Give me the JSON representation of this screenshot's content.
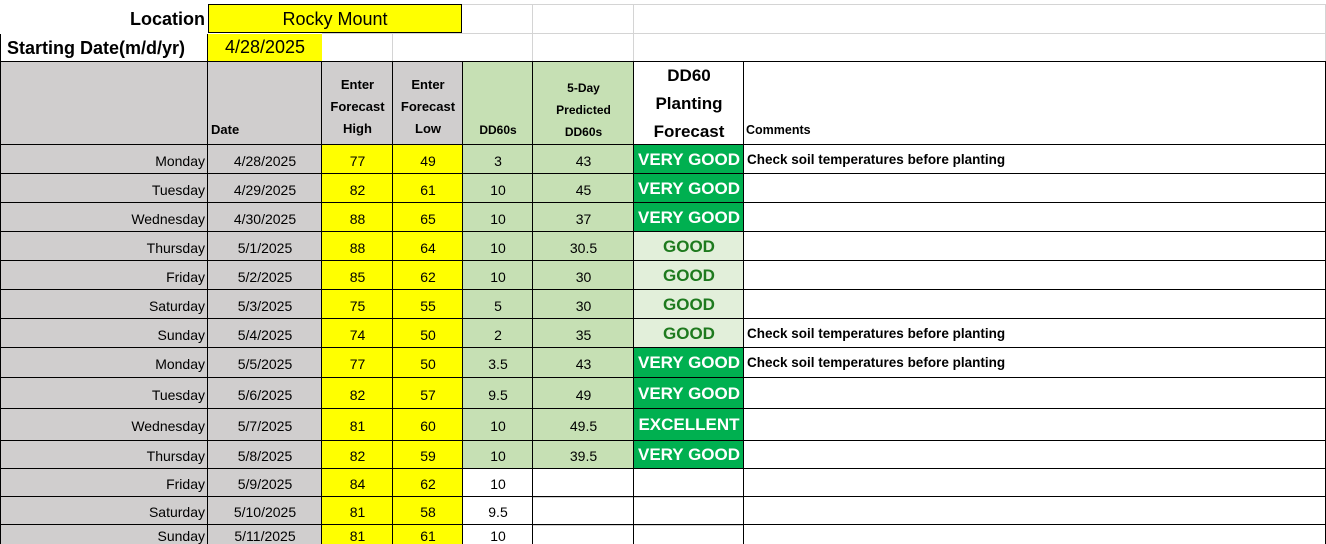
{
  "sheet": {
    "location_label": "Location",
    "location_value": "Rocky Mount",
    "start_label": "Starting Date(m/d/yr)",
    "start_value": "4/28/2025"
  },
  "columns": {
    "date": "Date",
    "high": [
      "Enter",
      "Forecast",
      "High"
    ],
    "low": [
      "Enter",
      "Forecast",
      "Low"
    ],
    "dd60s": "DD60s",
    "pred": [
      "5-Day",
      "Predicted",
      "DD60s"
    ],
    "forecast": [
      "DD60",
      "Planting",
      "Forecast"
    ],
    "comments": "Comments"
  },
  "rows": [
    {
      "day": "Monday",
      "date": "4/28/2025",
      "high": "77",
      "low": "49",
      "dd60": "3",
      "pred": "43",
      "forecast": "VERY GOOD",
      "comment": "Check soil temperatures before planting"
    },
    {
      "day": "Tuesday",
      "date": "4/29/2025",
      "high": "82",
      "low": "61",
      "dd60": "10",
      "pred": "45",
      "forecast": "VERY GOOD",
      "comment": ""
    },
    {
      "day": "Wednesday",
      "date": "4/30/2025",
      "high": "88",
      "low": "65",
      "dd60": "10",
      "pred": "37",
      "forecast": "VERY GOOD",
      "comment": ""
    },
    {
      "day": "Thursday",
      "date": "5/1/2025",
      "high": "88",
      "low": "64",
      "dd60": "10",
      "pred": "30.5",
      "forecast": "GOOD",
      "comment": ""
    },
    {
      "day": "Friday",
      "date": "5/2/2025",
      "high": "85",
      "low": "62",
      "dd60": "10",
      "pred": "30",
      "forecast": "GOOD",
      "comment": ""
    },
    {
      "day": "Saturday",
      "date": "5/3/2025",
      "high": "75",
      "low": "55",
      "dd60": "5",
      "pred": "30",
      "forecast": "GOOD",
      "comment": ""
    },
    {
      "day": "Sunday",
      "date": "5/4/2025",
      "high": "74",
      "low": "50",
      "dd60": "2",
      "pred": "35",
      "forecast": "GOOD",
      "comment": "Check soil temperatures before planting"
    },
    {
      "day": "Monday",
      "date": "5/5/2025",
      "high": "77",
      "low": "50",
      "dd60": "3.5",
      "pred": "43",
      "forecast": "VERY GOOD",
      "comment": "Check soil temperatures before planting"
    },
    {
      "day": "Tuesday",
      "date": "5/6/2025",
      "high": "82",
      "low": "57",
      "dd60": "9.5",
      "pred": "49",
      "forecast": "VERY GOOD",
      "comment": ""
    },
    {
      "day": "Wednesday",
      "date": "5/7/2025",
      "high": "81",
      "low": "60",
      "dd60": "10",
      "pred": "49.5",
      "forecast": "EXCELLENT",
      "comment": ""
    },
    {
      "day": "Thursday",
      "date": "5/8/2025",
      "high": "82",
      "low": "59",
      "dd60": "10",
      "pred": "39.5",
      "forecast": "VERY GOOD",
      "comment": ""
    },
    {
      "day": "Friday",
      "date": "5/9/2025",
      "high": "84",
      "low": "62",
      "dd60": "10",
      "pred": "",
      "forecast": "",
      "comment": ""
    },
    {
      "day": "Saturday",
      "date": "5/10/2025",
      "high": "81",
      "low": "58",
      "dd60": "9.5",
      "pred": "",
      "forecast": "",
      "comment": ""
    },
    {
      "day": "Sunday",
      "date": "5/11/2025",
      "high": "81",
      "low": "61",
      "dd60": "10",
      "pred": "",
      "forecast": "",
      "comment": ""
    }
  ],
  "colors": {
    "header_gray": "#d0cece",
    "input_yellow": "#ffff00",
    "calc_green": "#c6e0b4",
    "very_good_green": "#00b050",
    "good_pale_green": "#e2efda",
    "good_text": "#1e7a1e"
  }
}
